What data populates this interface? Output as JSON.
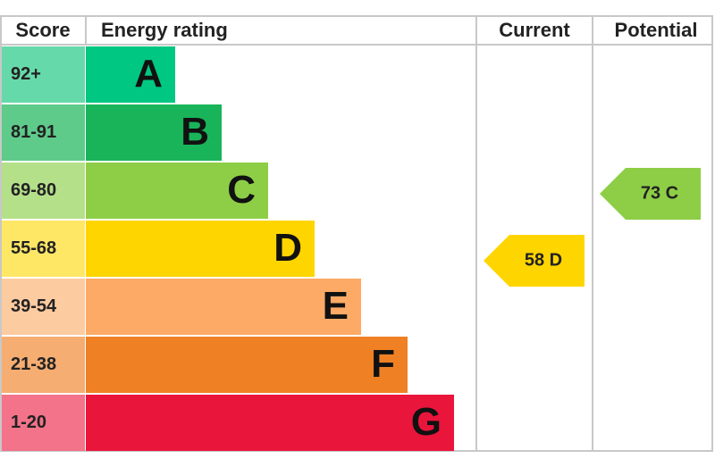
{
  "header": {
    "score": "Score",
    "rating": "Energy rating",
    "current": "Current",
    "potential": "Potential"
  },
  "bands": [
    {
      "score": "92+",
      "letter": "A"
    },
    {
      "score": "81-91",
      "letter": "B"
    },
    {
      "score": "69-80",
      "letter": "C"
    },
    {
      "score": "55-68",
      "letter": "D"
    },
    {
      "score": "39-54",
      "letter": "E"
    },
    {
      "score": "21-38",
      "letter": "F"
    },
    {
      "score": "1-20",
      "letter": "G"
    }
  ],
  "current": "58 D",
  "potential": "73 C"
}
